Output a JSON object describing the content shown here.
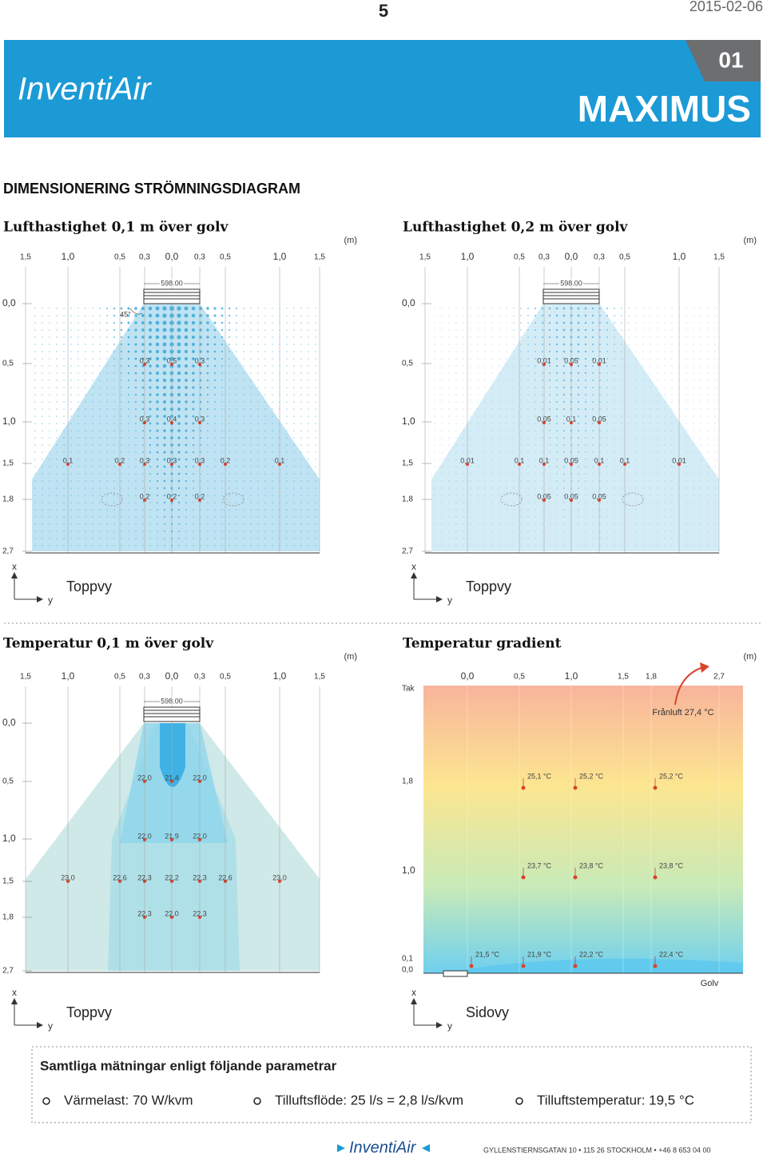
{
  "header": {
    "page_number": "5",
    "date": "2015-02-06",
    "brand": "InventiAir",
    "code": "01",
    "product": "MAXIMUS"
  },
  "section_title": "DIMENSIONERING STRÖMNINGSDIAGRAM",
  "panels": [
    {
      "title": "Lufthastighet 0,1 m över golv",
      "unit": "(m)",
      "x_labels": [
        "1,5",
        "1,0",
        "0,5",
        "0,3",
        "0,0",
        "0,3",
        "0,5",
        "1,0",
        "1,5"
      ],
      "width_label": "598.00",
      "angle_label": "45°",
      "y_labels": [
        "0,0",
        "0,5",
        "1,0",
        "1,5",
        "1,8",
        "2,7"
      ],
      "rows": [
        [
          "0,3",
          "0,5",
          "0,3"
        ],
        [
          "0,3",
          "0,4",
          "0,3"
        ],
        [
          "0,1",
          "0,2",
          "0,3",
          "0,3",
          "0,3",
          "0,2",
          "0,1"
        ],
        [
          "0,2",
          "0,2",
          "0,2"
        ]
      ],
      "axis_x": "x",
      "axis_y": "y",
      "view": "Toppvy"
    },
    {
      "title": "Lufthastighet 0,2 m över golv",
      "unit": "(m)",
      "x_labels": [
        "1,5",
        "1,0",
        "0,5",
        "0,3",
        "0,0",
        "0,3",
        "0,5",
        "1,0",
        "1,5"
      ],
      "width_label": "598.00",
      "y_labels": [
        "0,0",
        "0,5",
        "1,0",
        "1,5",
        "1,8",
        "2,7"
      ],
      "rows": [
        [
          "0,01",
          "0,05",
          "0,01"
        ],
        [
          "0,05",
          "0,1",
          "0,05"
        ],
        [
          "0,01",
          "0,1",
          "0,1",
          "0,05",
          "0,1",
          "0,1",
          "0,01"
        ],
        [
          "0,05",
          "0,05",
          "0,05"
        ]
      ],
      "axis_x": "x",
      "axis_y": "y",
      "view": "Toppvy"
    },
    {
      "title": "Temperatur 0,1 m över golv",
      "unit": "(m)",
      "x_labels": [
        "1,5",
        "1,0",
        "0,5",
        "0,3",
        "0,0",
        "0,3",
        "0,5",
        "1,0",
        "1,5"
      ],
      "width_label": "598.00",
      "y_labels": [
        "0,0",
        "0,5",
        "1,0",
        "1,5",
        "1,8",
        "2,7"
      ],
      "rows": [
        [
          "22,0",
          "21,4",
          "22,0"
        ],
        [
          "22,0",
          "21,9",
          "22,0"
        ],
        [
          "23,0",
          "22,6",
          "22,3",
          "22,2",
          "22,3",
          "22,6",
          "23,0"
        ],
        [
          "22,3",
          "22,0",
          "22,3"
        ]
      ],
      "axis_x": "x",
      "axis_y": "y",
      "view": "Toppvy"
    },
    {
      "title": "Temperatur gradient",
      "unit": "(m)",
      "x_labels": [
        "0,0",
        "0,5",
        "1,0",
        "1,5",
        "1,8",
        "2,7"
      ],
      "y_labels": [
        "Tak",
        "1,8",
        "1,0",
        "0,1",
        "0,0"
      ],
      "exhaust": "Frånluft 27,4 °C",
      "rows": [
        [
          "25,1 °C",
          "25,2 °C",
          "25,2 °C"
        ],
        [
          "23,7 °C",
          "23,8 °C",
          "23,8 °C"
        ],
        [
          "21,5 °C",
          "21,9 °C",
          "22,2 °C",
          "22,4 °C"
        ]
      ],
      "floor": "Golv",
      "axis_x": "x",
      "axis_y": "y",
      "view": "Sidovy"
    }
  ],
  "parameters": {
    "title": "Samtliga mätningar enligt följande parametrar",
    "items": [
      "Värmelast: 70 W/kvm",
      "Tilluftsflöde: 25 l/s = 2,8 l/s/kvm",
      "Tilluftstemperatur: 19,5 °C"
    ]
  },
  "footer": {
    "brand": "InventiAir",
    "address": "GYLLENSTIERNSGATAN 10 • 115 26 STOCKHOLM • +46 8 653 04 00"
  }
}
